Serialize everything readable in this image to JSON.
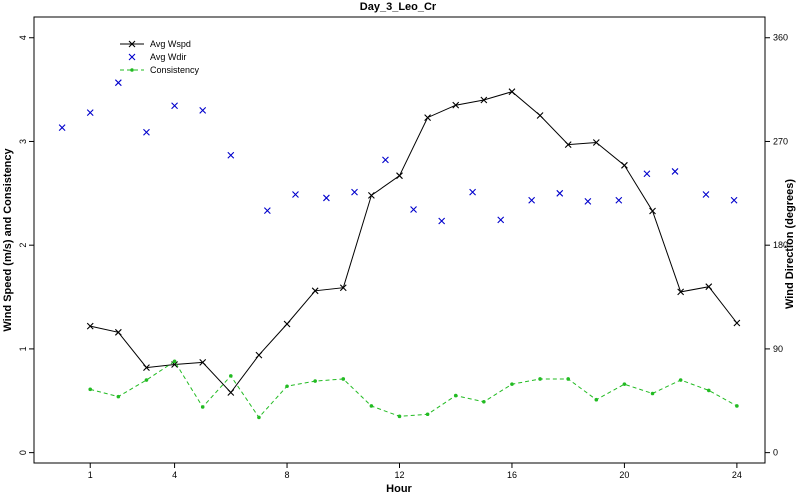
{
  "chart_data": {
    "type": "line",
    "title": "Day_3_Leo_Cr",
    "xlabel": "Hour",
    "ylabel_left": "Wind Speed (m/s) and Consistency",
    "ylabel_right": "Wind Direction (degrees)",
    "xlim": [
      -1,
      25
    ],
    "ylim_left": [
      -0.1,
      4.2
    ],
    "ylim_right": [
      -9,
      378
    ],
    "x_ticks": [
      1,
      4,
      8,
      12,
      16,
      20,
      24
    ],
    "y_ticks_left": [
      0,
      1,
      2,
      3,
      4
    ],
    "y_ticks_right": [
      0,
      90,
      180,
      270,
      360
    ],
    "legend_position": "top-left",
    "series": [
      {
        "name": "Avg Wspd",
        "axis": "left",
        "color": "#000000",
        "style": "solid-line-x-markers",
        "x": [
          1,
          2,
          3,
          4,
          5,
          6,
          7,
          8,
          9,
          10,
          11,
          12,
          13,
          14,
          15,
          16,
          17,
          18,
          19,
          20,
          21,
          22,
          23,
          24
        ],
        "y": [
          1.22,
          1.16,
          0.82,
          0.85,
          0.87,
          0.58,
          0.94,
          1.24,
          1.56,
          1.59,
          2.48,
          2.67,
          3.23,
          3.35,
          3.4,
          3.48,
          3.25,
          2.97,
          2.99,
          2.77,
          2.33,
          1.55,
          1.6,
          1.25
        ]
      },
      {
        "name": "Avg Wdir",
        "axis": "right",
        "color": "#0000cc",
        "style": "x-markers",
        "x": [
          0,
          1,
          2,
          3,
          4,
          5,
          6,
          7.3,
          8.3,
          9.4,
          10.4,
          11.5,
          12.5,
          13.5,
          14.6,
          15.6,
          16.7,
          17.7,
          18.7,
          19.8,
          20.8,
          21.8,
          22.9,
          23.9
        ],
        "y": [
          282,
          295,
          321,
          278,
          301,
          297,
          258,
          210,
          224,
          221,
          226,
          254,
          211,
          201,
          226,
          202,
          219,
          225,
          218,
          219,
          242,
          244,
          224,
          219
        ]
      },
      {
        "name": "Consistency",
        "axis": "left",
        "color": "#22bb22",
        "style": "dashed-line-dot-markers",
        "x": [
          1,
          2,
          3,
          4,
          5,
          6,
          7,
          8,
          9,
          10,
          11,
          12,
          13,
          14,
          15,
          16,
          17,
          18,
          19,
          20,
          21,
          22,
          23,
          24
        ],
        "y": [
          0.61,
          0.54,
          0.7,
          0.88,
          0.44,
          0.74,
          0.34,
          0.64,
          0.69,
          0.71,
          0.45,
          0.35,
          0.37,
          0.55,
          0.49,
          0.66,
          0.71,
          0.71,
          0.51,
          0.66,
          0.57,
          0.7,
          0.6,
          0.45
        ]
      }
    ]
  }
}
